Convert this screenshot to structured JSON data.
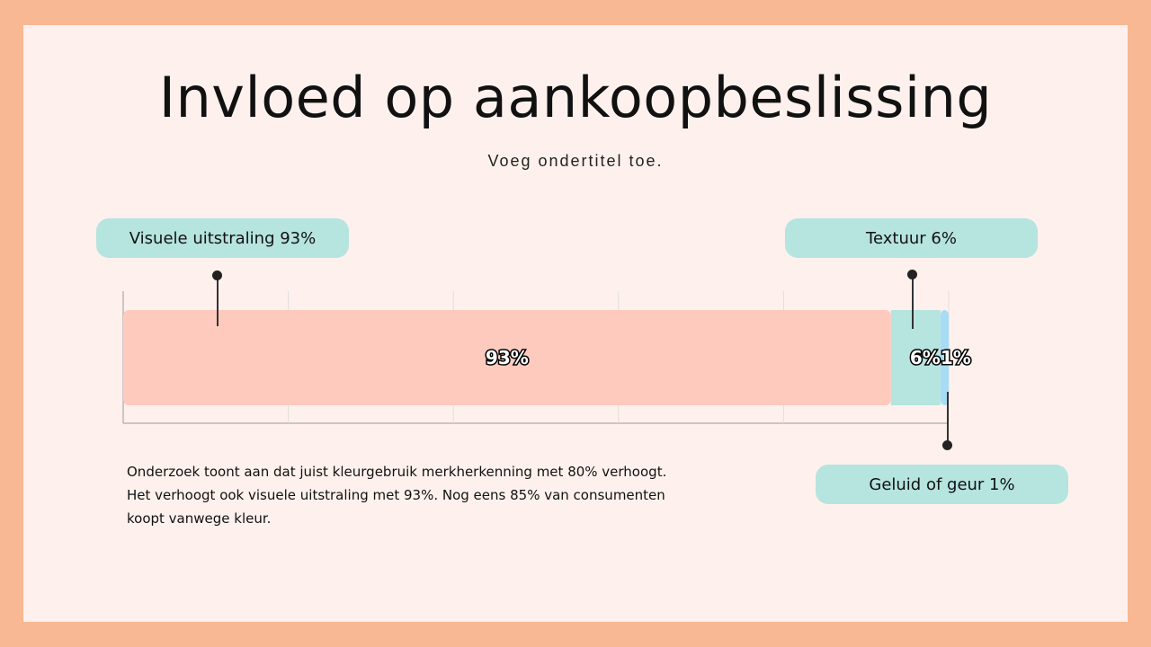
{
  "title": "Invloed op aankoopbeslissing",
  "subtitle": "Voeg ondertitel toe.",
  "callouts": {
    "visual": "Visuele uitstraling 93%",
    "texture": "Textuur 6%",
    "sound": "Geluid of geur 1%"
  },
  "note": {
    "line1": "Onderzoek toont aan dat juist kleurgebruik merkherkenning met 80% verhoogt.",
    "line2": "Het verhoogt ook visuele uitstraling met 93%. Nog eens 85% van consumenten",
    "line3": "koopt vanwege kleur."
  },
  "colors": {
    "frame": "#f9b894",
    "background": "#fef1ed",
    "callout": "#b6e4df"
  },
  "chart_data": {
    "type": "bar",
    "orientation": "horizontal",
    "stacked": true,
    "xlim": [
      0,
      100
    ],
    "grid": true,
    "series": [
      {
        "value": 93,
        "label": "93%",
        "color": "#fecabe"
      },
      {
        "value": 6,
        "label": "6%",
        "color": "#b6e4df"
      },
      {
        "value": 1,
        "label": "1%",
        "color": "#a8dcf5"
      }
    ]
  }
}
